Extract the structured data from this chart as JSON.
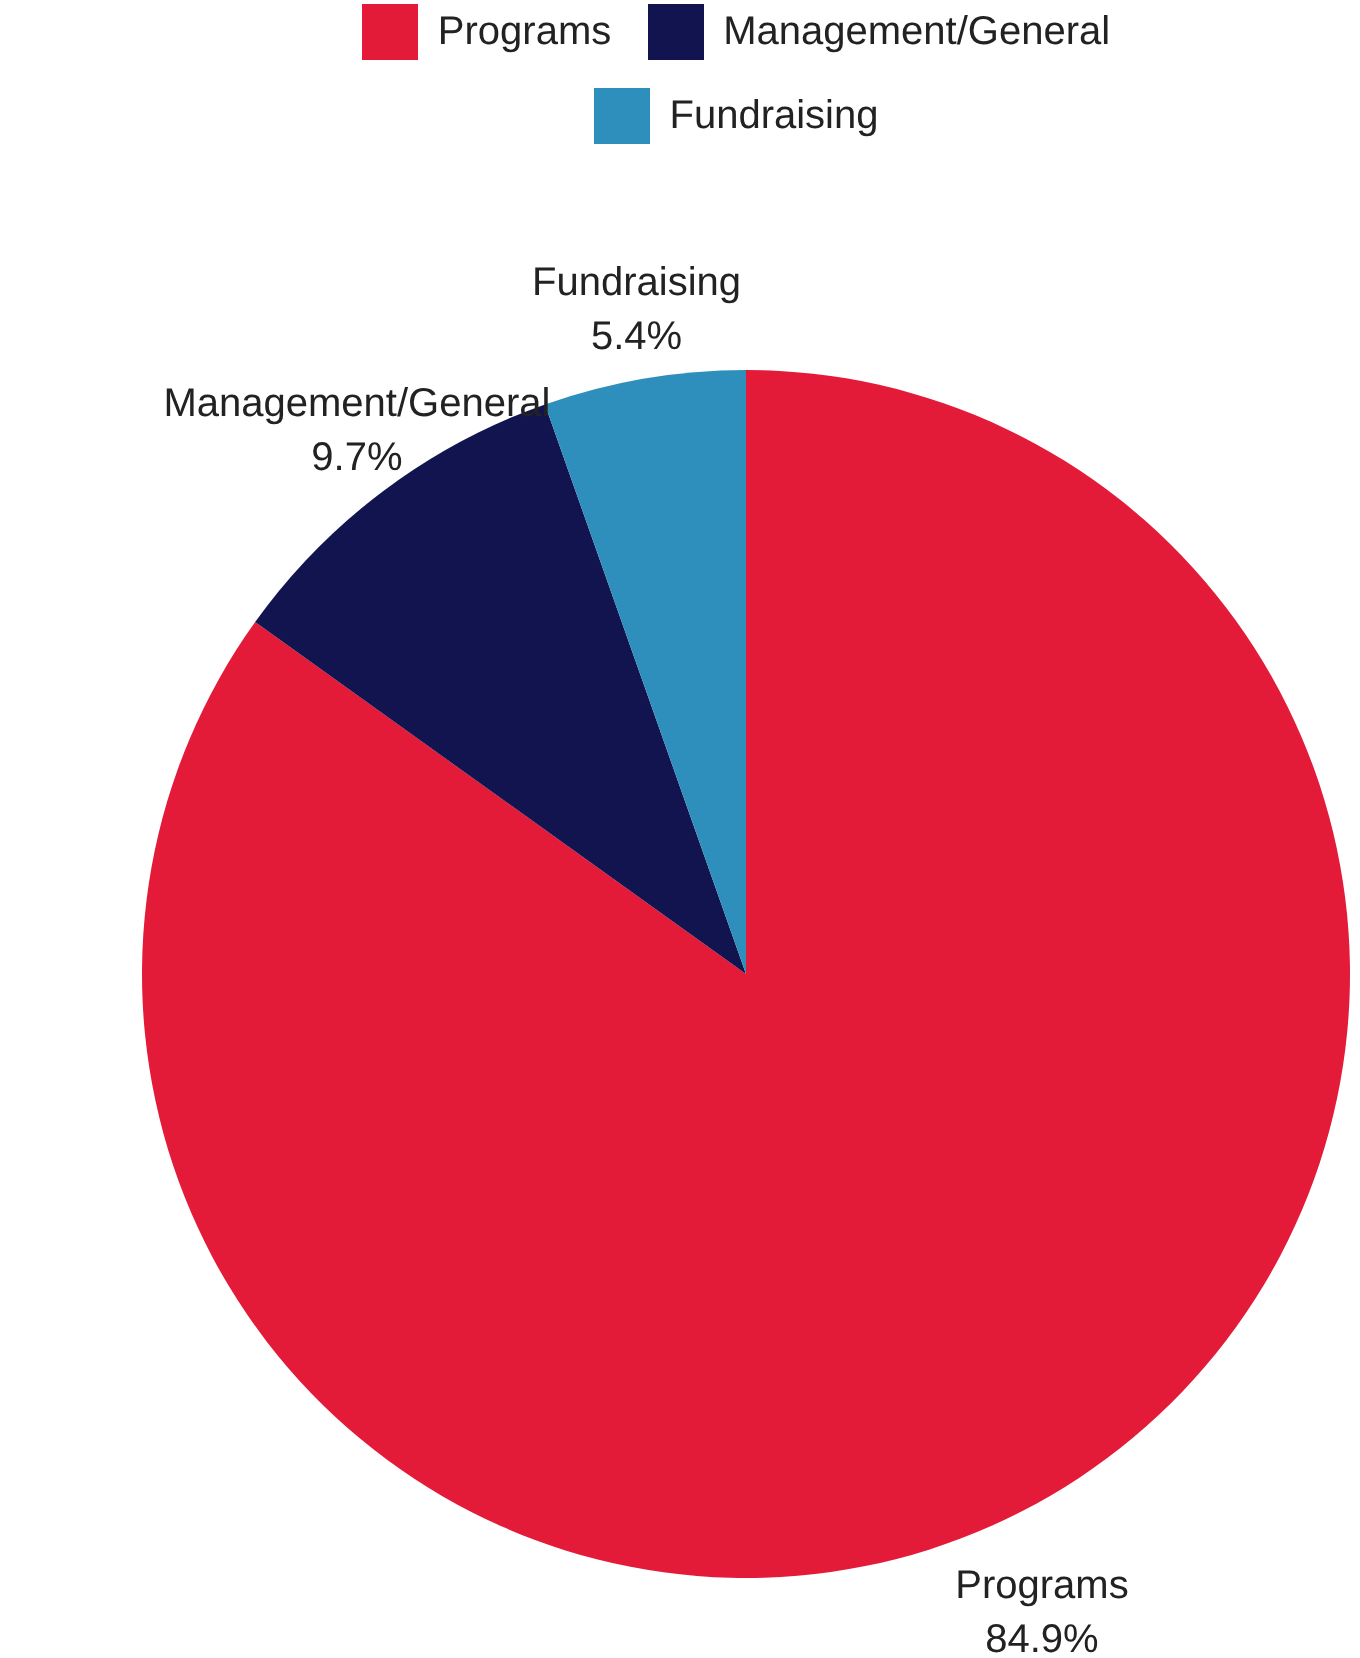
{
  "chart_data": {
    "type": "pie",
    "categories": [
      "Programs",
      "Management/General",
      "Fundraising"
    ],
    "values": [
      84.9,
      9.7,
      5.4
    ],
    "value_labels": [
      "84.9%",
      "9.7%",
      "5.4%"
    ],
    "colors": [
      "#e41a39",
      "#12144f",
      "#2e8fbd"
    ],
    "legend": "top"
  }
}
